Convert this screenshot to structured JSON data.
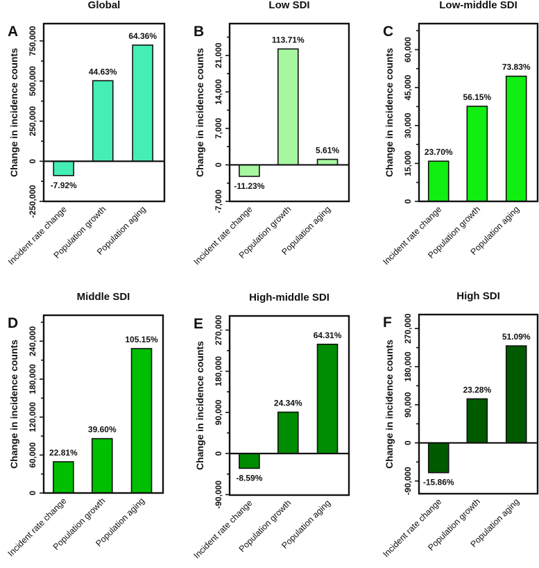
{
  "chart_data": [
    {
      "type": "bar",
      "panel": "A",
      "title": "Global",
      "ylabel": "Change in incidence counts",
      "categories": [
        "Incident rate change",
        "Population growth",
        "Population aging"
      ],
      "values": [
        -89000,
        502000,
        724000
      ],
      "labels": [
        "-7.92%",
        "44.63%",
        "64.36%"
      ],
      "yticks": [
        -250000,
        0,
        250000,
        500000,
        750000
      ],
      "ytick_labels": [
        "-250,000",
        "0",
        "250,000",
        "500,000",
        "750,000"
      ],
      "ylim": [
        -250000,
        858000
      ],
      "color": "#44EEB4"
    },
    {
      "type": "bar",
      "panel": "B",
      "title": "Low SDI",
      "ylabel": "Change in incidence counts",
      "categories": [
        "Incident rate change",
        "Population growth",
        "Population aging"
      ],
      "values": [
        -2200,
        22240,
        1060
      ],
      "labels": [
        "-11.23%",
        "113.71%",
        "5.61%"
      ],
      "yticks": [
        -7000,
        0,
        7000,
        14000,
        21000
      ],
      "ytick_labels": [
        "-7,000",
        "0",
        "7,000",
        "14,000",
        "21,000"
      ],
      "ylim": [
        -7000,
        27100
      ],
      "color": "#A6F7A0"
    },
    {
      "type": "bar",
      "panel": "C",
      "title": "Low-middle SDI",
      "ylabel": "Change in incidence counts",
      "categories": [
        "Incident rate change",
        "Population growth",
        "Population aging"
      ],
      "values": [
        15900,
        37600,
        49500
      ],
      "labels": [
        "23.70%",
        "56.15%",
        "73.83%"
      ],
      "yticks": [
        0,
        15000,
        30000,
        45000,
        60000
      ],
      "ytick_labels": [
        "0",
        "15,000",
        "30,000",
        "45,000",
        "60,000"
      ],
      "ylim": [
        0,
        70300
      ],
      "color": "#11EE11"
    },
    {
      "type": "bar",
      "panel": "D",
      "title": "Middle SDI",
      "ylabel": "Change in incidence counts",
      "categories": [
        "Incident rate change",
        "Population growth",
        "Population aging"
      ],
      "values": [
        49400,
        86000,
        228300
      ],
      "labels": [
        "22.81%",
        "39.60%",
        "105.15%"
      ],
      "yticks": [
        0,
        60000,
        120000,
        180000,
        240000
      ],
      "ytick_labels": [
        "0",
        "60,000",
        "120,000",
        "180,000",
        "240,000"
      ],
      "ylim": [
        0,
        281000
      ],
      "color": "#00BF00"
    },
    {
      "type": "bar",
      "panel": "E",
      "title": "High-middle SDI",
      "ylabel": "Change in incidence counts",
      "categories": [
        "Incident rate change",
        "Population growth",
        "Population aging"
      ],
      "values": [
        -32400,
        90500,
        239000
      ],
      "labels": [
        "-8.59%",
        "24.34%",
        "64.31%"
      ],
      "yticks": [
        -90000,
        0,
        90000,
        180000,
        270000
      ],
      "ytick_labels": [
        "-90,000",
        "0",
        "90,000",
        "180,000",
        "270,000"
      ],
      "ylim": [
        -91000,
        301000
      ],
      "color": "#008C00"
    },
    {
      "type": "bar",
      "panel": "F",
      "title": "High SDI",
      "ylabel": "Change in incidence counts",
      "categories": [
        "Incident rate change",
        "Population growth",
        "Population aging"
      ],
      "values": [
        -70300,
        104000,
        229000
      ],
      "labels": [
        "-15.86%",
        "23.28%",
        "51.09%"
      ],
      "yticks": [
        -90000,
        0,
        90000,
        180000,
        270000
      ],
      "ytick_labels": [
        "-90,000",
        "0",
        "90,000",
        "180,000",
        "270,000"
      ],
      "ylim": [
        -120000,
        303000
      ],
      "color": "#005A00"
    }
  ]
}
